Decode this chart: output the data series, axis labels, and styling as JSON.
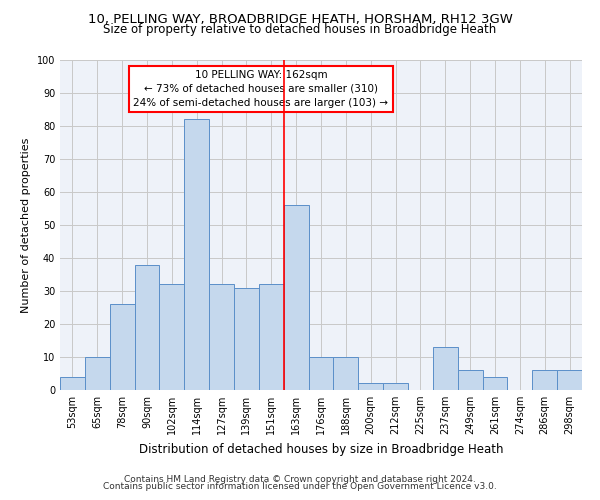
{
  "title1": "10, PELLING WAY, BROADBRIDGE HEATH, HORSHAM, RH12 3GW",
  "title2": "Size of property relative to detached houses in Broadbridge Heath",
  "xlabel": "Distribution of detached houses by size in Broadbridge Heath",
  "ylabel": "Number of detached properties",
  "categories": [
    "53sqm",
    "65sqm",
    "78sqm",
    "90sqm",
    "102sqm",
    "114sqm",
    "127sqm",
    "139sqm",
    "151sqm",
    "163sqm",
    "176sqm",
    "188sqm",
    "200sqm",
    "212sqm",
    "225sqm",
    "237sqm",
    "249sqm",
    "261sqm",
    "274sqm",
    "286sqm",
    "298sqm"
  ],
  "values": [
    4,
    10,
    26,
    38,
    32,
    82,
    32,
    31,
    32,
    56,
    10,
    10,
    2,
    2,
    0,
    13,
    6,
    4,
    0,
    6,
    6
  ],
  "bar_color": "#c5d8ed",
  "bar_edge_color": "#5b8fc9",
  "annotation_text": "10 PELLING WAY: 162sqm\n← 73% of detached houses are smaller (310)\n24% of semi-detached houses are larger (103) →",
  "annotation_box_color": "white",
  "annotation_box_edge": "red",
  "ylim": [
    0,
    100
  ],
  "yticks": [
    0,
    10,
    20,
    30,
    40,
    50,
    60,
    70,
    80,
    90,
    100
  ],
  "grid_color": "#c8c8c8",
  "background_color": "#eef2f9",
  "footer1": "Contains HM Land Registry data © Crown copyright and database right 2024.",
  "footer2": "Contains public sector information licensed under the Open Government Licence v3.0.",
  "title1_fontsize": 9.5,
  "title2_fontsize": 8.5,
  "xlabel_fontsize": 8.5,
  "ylabel_fontsize": 8,
  "tick_fontsize": 7,
  "annotation_fontsize": 7.5,
  "footer_fontsize": 6.5,
  "red_line_bin": 8.5
}
